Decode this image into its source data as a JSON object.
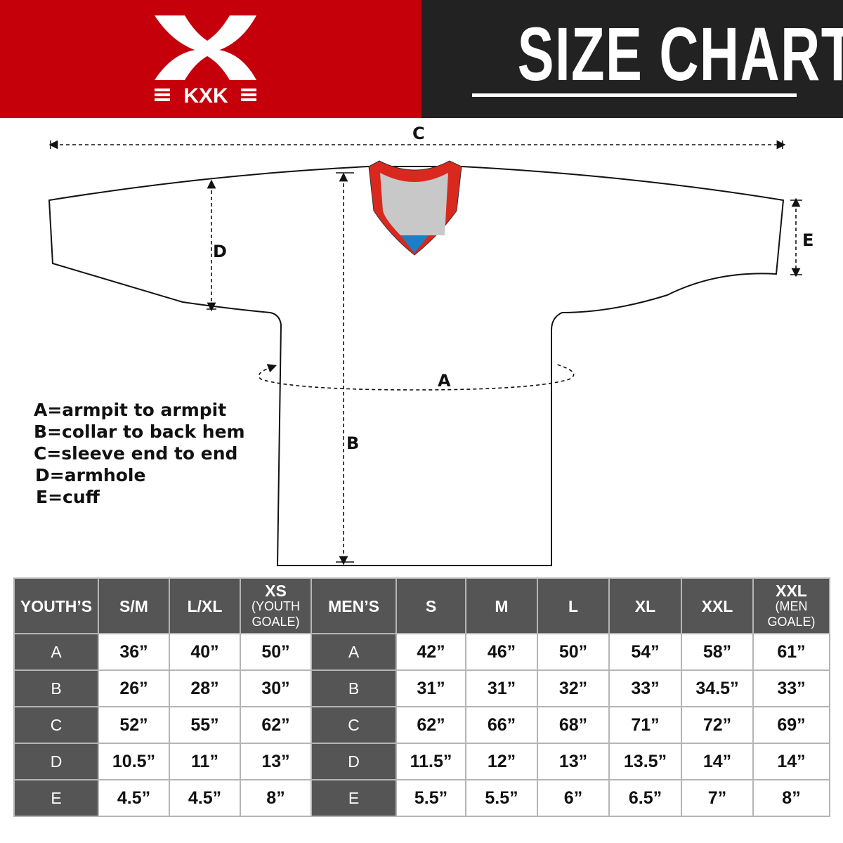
{
  "brand": {
    "name": "KXK",
    "color": "#c6000b"
  },
  "header": {
    "title": "SIZE CHART",
    "background": "#222222"
  },
  "diagram": {
    "labels": {
      "a": "A",
      "b": "B",
      "c": "C",
      "d": "D",
      "e": "E"
    },
    "collar_colors": {
      "band": "#d9281e",
      "inner": "#c8c8c8",
      "tip": "#1a7fc9"
    }
  },
  "legend": [
    "A=armpit to armpit",
    "B=collar to back hem",
    "C=sleeve end to end",
    "D=armhole",
    "E=cuff"
  ],
  "table": {
    "youth_header": "YOUTH’S",
    "youth_sizes": [
      {
        "main": "S/M",
        "sub": ""
      },
      {
        "main": "L/XL",
        "sub": ""
      },
      {
        "main": "XS",
        "sub": "(YOUTH GOALE)"
      }
    ],
    "men_header": "MEN’S",
    "men_sizes": [
      {
        "main": "S",
        "sub": ""
      },
      {
        "main": "M",
        "sub": ""
      },
      {
        "main": "L",
        "sub": ""
      },
      {
        "main": "XL",
        "sub": ""
      },
      {
        "main": "XXL",
        "sub": ""
      },
      {
        "main": "XXL",
        "sub": "(MEN GOALE)"
      }
    ],
    "rows": [
      {
        "label": "A",
        "youth": [
          "36”",
          "40”",
          "50”"
        ],
        "men": [
          "42”",
          "46”",
          "50”",
          "54”",
          "58”",
          "61”"
        ]
      },
      {
        "label": "B",
        "youth": [
          "26”",
          "28”",
          "30”"
        ],
        "men": [
          "31”",
          "31”",
          "32”",
          "33”",
          "34.5”",
          "33”"
        ]
      },
      {
        "label": "C",
        "youth": [
          "52”",
          "55”",
          "62”"
        ],
        "men": [
          "62”",
          "66”",
          "68”",
          "71”",
          "72”",
          "69”"
        ]
      },
      {
        "label": "D",
        "youth": [
          "10.5”",
          "11”",
          "13”"
        ],
        "men": [
          "11.5”",
          "12”",
          "13”",
          "13.5”",
          "14”",
          "14”"
        ]
      },
      {
        "label": "E",
        "youth": [
          "4.5”",
          "4.5”",
          "8”"
        ],
        "men": [
          "5.5”",
          "5.5”",
          "6”",
          "6.5”",
          "7”",
          "8”"
        ]
      }
    ]
  }
}
